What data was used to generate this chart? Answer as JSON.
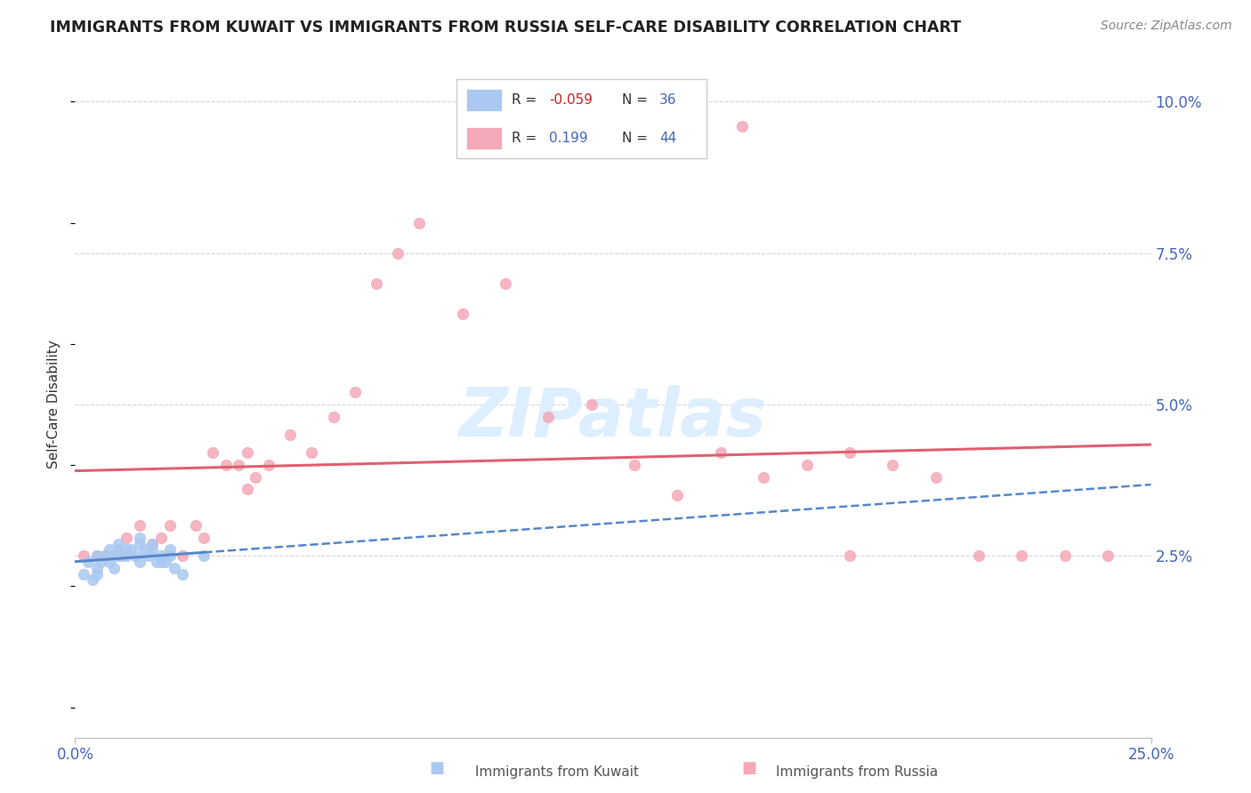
{
  "title": "IMMIGRANTS FROM KUWAIT VS IMMIGRANTS FROM RUSSIA SELF-CARE DISABILITY CORRELATION CHART",
  "source": "Source: ZipAtlas.com",
  "ylabel": "Self-Care Disability",
  "ytick_labels": [
    "2.5%",
    "5.0%",
    "7.5%",
    "10.0%"
  ],
  "ytick_values": [
    0.025,
    0.05,
    0.075,
    0.1
  ],
  "xlim": [
    0.0,
    0.25
  ],
  "ylim": [
    -0.005,
    0.105
  ],
  "kuwait_color": "#aac8f0",
  "russia_color": "#f4a8b8",
  "kuwait_line_color": "#5588cc",
  "russia_line_color": "#e06070",
  "kuwait_scatter_x": [
    0.002,
    0.003,
    0.004,
    0.005,
    0.005,
    0.005,
    0.006,
    0.007,
    0.008,
    0.008,
    0.009,
    0.009,
    0.01,
    0.01,
    0.01,
    0.011,
    0.012,
    0.012,
    0.013,
    0.014,
    0.015,
    0.015,
    0.015,
    0.016,
    0.017,
    0.018,
    0.018,
    0.019,
    0.02,
    0.02,
    0.021,
    0.022,
    0.022,
    0.023,
    0.025,
    0.03
  ],
  "kuwait_scatter_y": [
    0.022,
    0.024,
    0.021,
    0.023,
    0.025,
    0.022,
    0.024,
    0.025,
    0.026,
    0.024,
    0.025,
    0.023,
    0.027,
    0.026,
    0.025,
    0.025,
    0.026,
    0.025,
    0.026,
    0.025,
    0.028,
    0.027,
    0.024,
    0.026,
    0.025,
    0.027,
    0.026,
    0.024,
    0.025,
    0.024,
    0.024,
    0.025,
    0.026,
    0.023,
    0.022,
    0.025
  ],
  "russia_scatter_x": [
    0.002,
    0.005,
    0.007,
    0.01,
    0.012,
    0.015,
    0.018,
    0.02,
    0.022,
    0.025,
    0.028,
    0.03,
    0.032,
    0.035,
    0.038,
    0.04,
    0.04,
    0.042,
    0.045,
    0.05,
    0.055,
    0.06,
    0.065,
    0.07,
    0.075,
    0.08,
    0.09,
    0.1,
    0.11,
    0.12,
    0.13,
    0.14,
    0.15,
    0.16,
    0.17,
    0.18,
    0.19,
    0.2,
    0.21,
    0.22,
    0.23,
    0.24,
    0.155,
    0.18
  ],
  "russia_scatter_y": [
    0.025,
    0.025,
    0.025,
    0.025,
    0.028,
    0.03,
    0.027,
    0.028,
    0.03,
    0.025,
    0.03,
    0.028,
    0.042,
    0.04,
    0.04,
    0.042,
    0.036,
    0.038,
    0.04,
    0.045,
    0.042,
    0.048,
    0.052,
    0.07,
    0.075,
    0.08,
    0.065,
    0.07,
    0.048,
    0.05,
    0.04,
    0.035,
    0.042,
    0.038,
    0.04,
    0.042,
    0.04,
    0.038,
    0.025,
    0.025,
    0.025,
    0.025,
    0.096,
    0.025
  ],
  "background_color": "#ffffff",
  "grid_color": "#cccccc",
  "title_color": "#222222",
  "axis_label_color": "#4466bb",
  "watermark_color": "#ddeeff"
}
